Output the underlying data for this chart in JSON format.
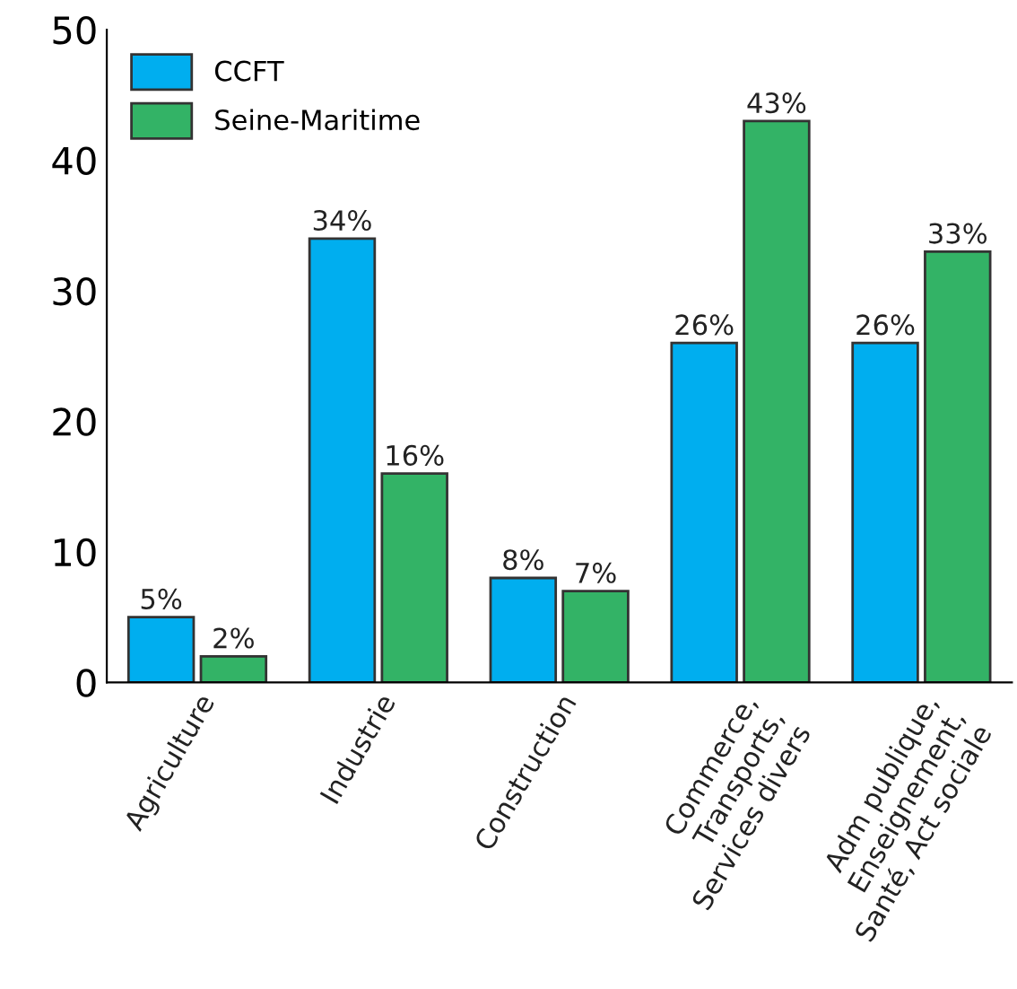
{
  "chart_data": {
    "type": "bar",
    "categories": [
      "Agriculture",
      "Industrie",
      "Construction",
      "Commerce,\nTransports,\nServices divers",
      "Adm publique,\nEnseignement,\nSanté, Act sociale"
    ],
    "series": [
      {
        "name": "CCFT",
        "color": "#00aeef",
        "values": [
          5,
          34,
          8,
          26,
          26
        ],
        "value_labels": [
          "5%",
          "34%",
          "8%",
          "26%",
          "26%"
        ]
      },
      {
        "name": "Seine-Maritime",
        "color": "#33b366",
        "values": [
          2,
          16,
          7,
          43,
          33
        ],
        "value_labels": [
          "2%",
          "16%",
          "7%",
          "43%",
          "33%"
        ]
      }
    ],
    "ylim": [
      0,
      50
    ],
    "yticks": [
      0,
      10,
      20,
      30,
      40,
      50
    ],
    "grid": false,
    "legend": "top left"
  }
}
